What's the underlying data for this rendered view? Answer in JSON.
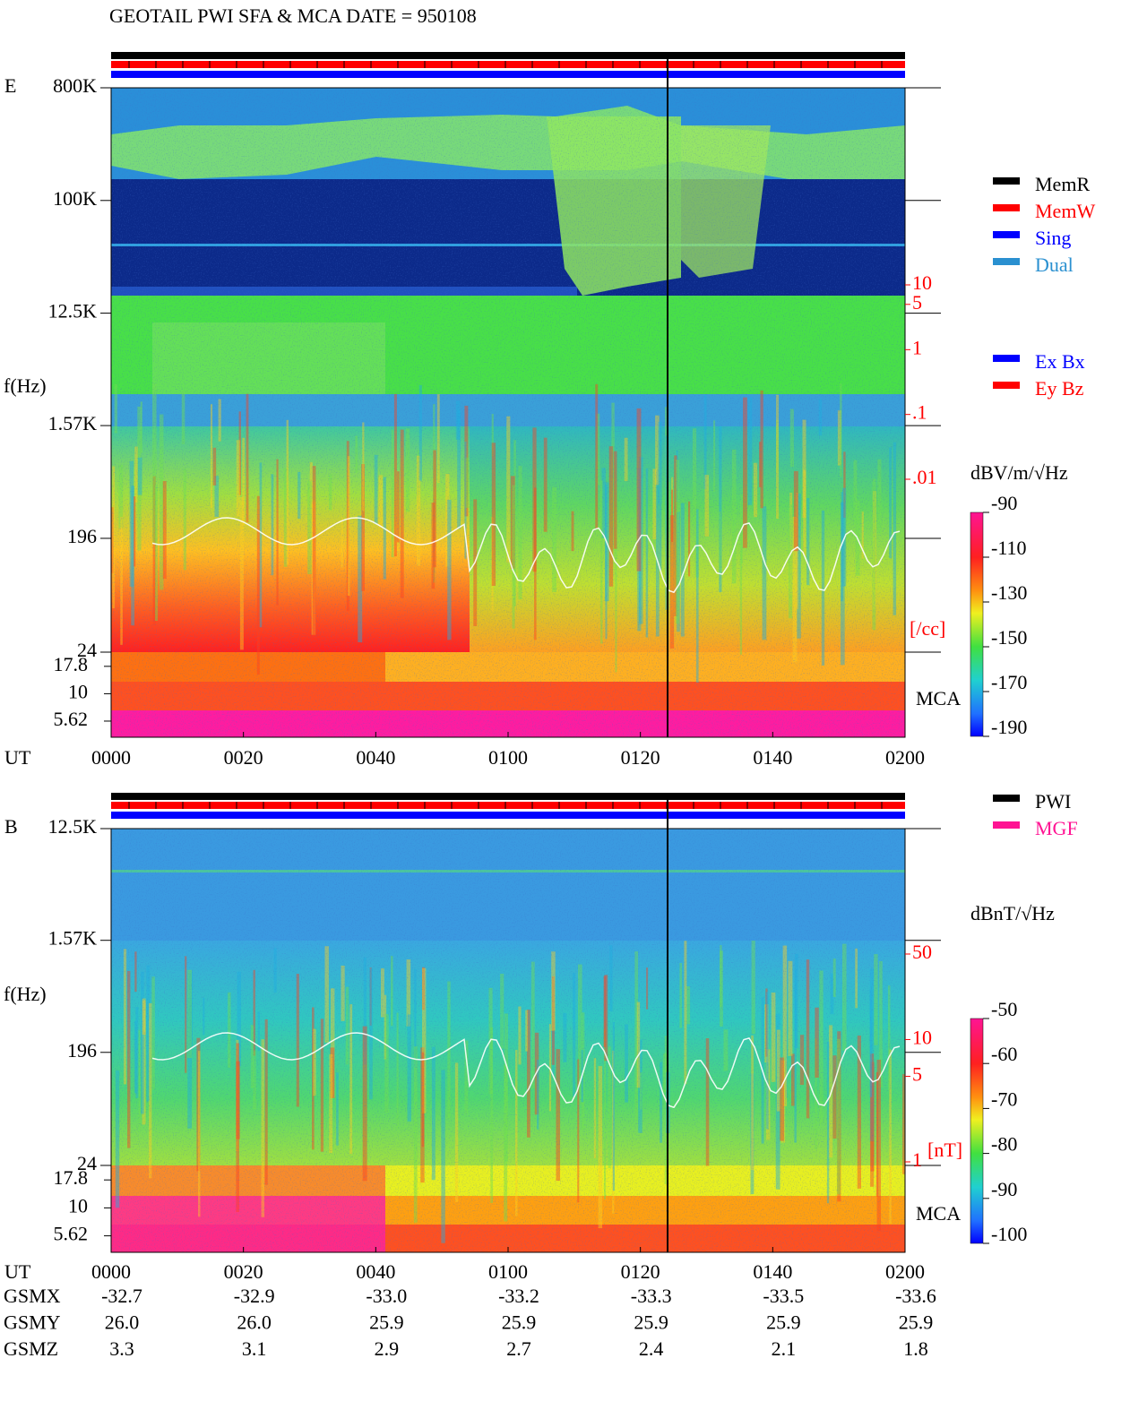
{
  "title": "GEOTAIL  PWI SFA & MCA   DATE = 950108",
  "status_legend": [
    {
      "name": "MemR",
      "color": "#000000"
    },
    {
      "name": "MemW",
      "color": "#ff0000"
    },
    {
      "name": "Sing",
      "color": "#0000ff"
    },
    {
      "name": "Dual",
      "color": "#2a90d0"
    }
  ],
  "chart_data": [
    {
      "type": "spectrogram",
      "panel_label": "E",
      "ylabel": "f(Hz)",
      "xlabel": "UT",
      "x": [
        "0000",
        "0020",
        "0040",
        "0100",
        "0120",
        "0140",
        "0200"
      ],
      "log_y": true,
      "ylim": [
        24,
        800000
      ],
      "yticks": [
        {
          "value": 800000,
          "label": "800K"
        },
        {
          "value": 100000,
          "label": "100K"
        },
        {
          "value": 12500,
          "label": "12.5K"
        },
        {
          "value": 1570,
          "label": "1.57K"
        },
        196,
        24
      ],
      "mca_label": "MCA",
      "mca_ylim": [
        4,
        24
      ],
      "mca_yticks": [
        17.8,
        10,
        5.62
      ],
      "y2label": "[/cc]",
      "y2color": "#ff0000",
      "y2lim": [
        0.01,
        10
      ],
      "y2ticks": [
        10,
        5,
        1,
        {
          "value": 0.1,
          "label": ".1"
        },
        {
          "value": 0.01,
          "label": ".01"
        }
      ],
      "colorbar": {
        "label": "dBV/m/√Hz",
        "lim": [
          -190,
          -90
        ],
        "ticks": [
          -90,
          -110,
          -130,
          -150,
          -170,
          -190
        ]
      },
      "legend": [
        {
          "name": "Ex Bx",
          "color": "#0000ff"
        },
        {
          "name": "Ey Bz",
          "color": "#ff0000"
        }
      ]
    },
    {
      "type": "spectrogram",
      "panel_label": "B",
      "ylabel": "f(Hz)",
      "xlabel": "UT",
      "x": [
        "0000",
        "0020",
        "0040",
        "0100",
        "0120",
        "0140",
        "0200"
      ],
      "log_y": true,
      "ylim": [
        24,
        12500
      ],
      "yticks": [
        {
          "value": 12500,
          "label": "12.5K"
        },
        {
          "value": 1570,
          "label": "1.57K"
        },
        196,
        24
      ],
      "mca_label": "MCA",
      "mca_ylim": [
        4,
        24
      ],
      "mca_yticks": [
        17.8,
        10,
        5.62
      ],
      "y2label": "[nT]",
      "y2color": "#ff0000",
      "y2lim": [
        1,
        50
      ],
      "y2ticks": [
        50,
        10,
        5,
        1
      ],
      "colorbar": {
        "label": "dBnT/√Hz",
        "lim": [
          -100,
          -50
        ],
        "ticks": [
          -50,
          -60,
          -70,
          -80,
          -90,
          -100
        ]
      },
      "legend": [
        {
          "name": "PWI",
          "color": "#000000"
        },
        {
          "name": "MGF",
          "color": "#ff1493"
        }
      ]
    }
  ],
  "orbit": {
    "rows": [
      {
        "name": "GSMX",
        "values": [
          "-32.7",
          "-32.9",
          "-33.0",
          "-33.2",
          "-33.3",
          "-33.5",
          "-33.6"
        ]
      },
      {
        "name": "GSMY",
        "values": [
          "26.0",
          "26.0",
          "25.9",
          "25.9",
          "25.9",
          "25.9",
          "25.9"
        ]
      },
      {
        "name": "GSMZ",
        "values": [
          "3.3",
          "3.1",
          "2.9",
          "2.7",
          "2.4",
          "2.1",
          "1.8"
        ]
      }
    ]
  }
}
